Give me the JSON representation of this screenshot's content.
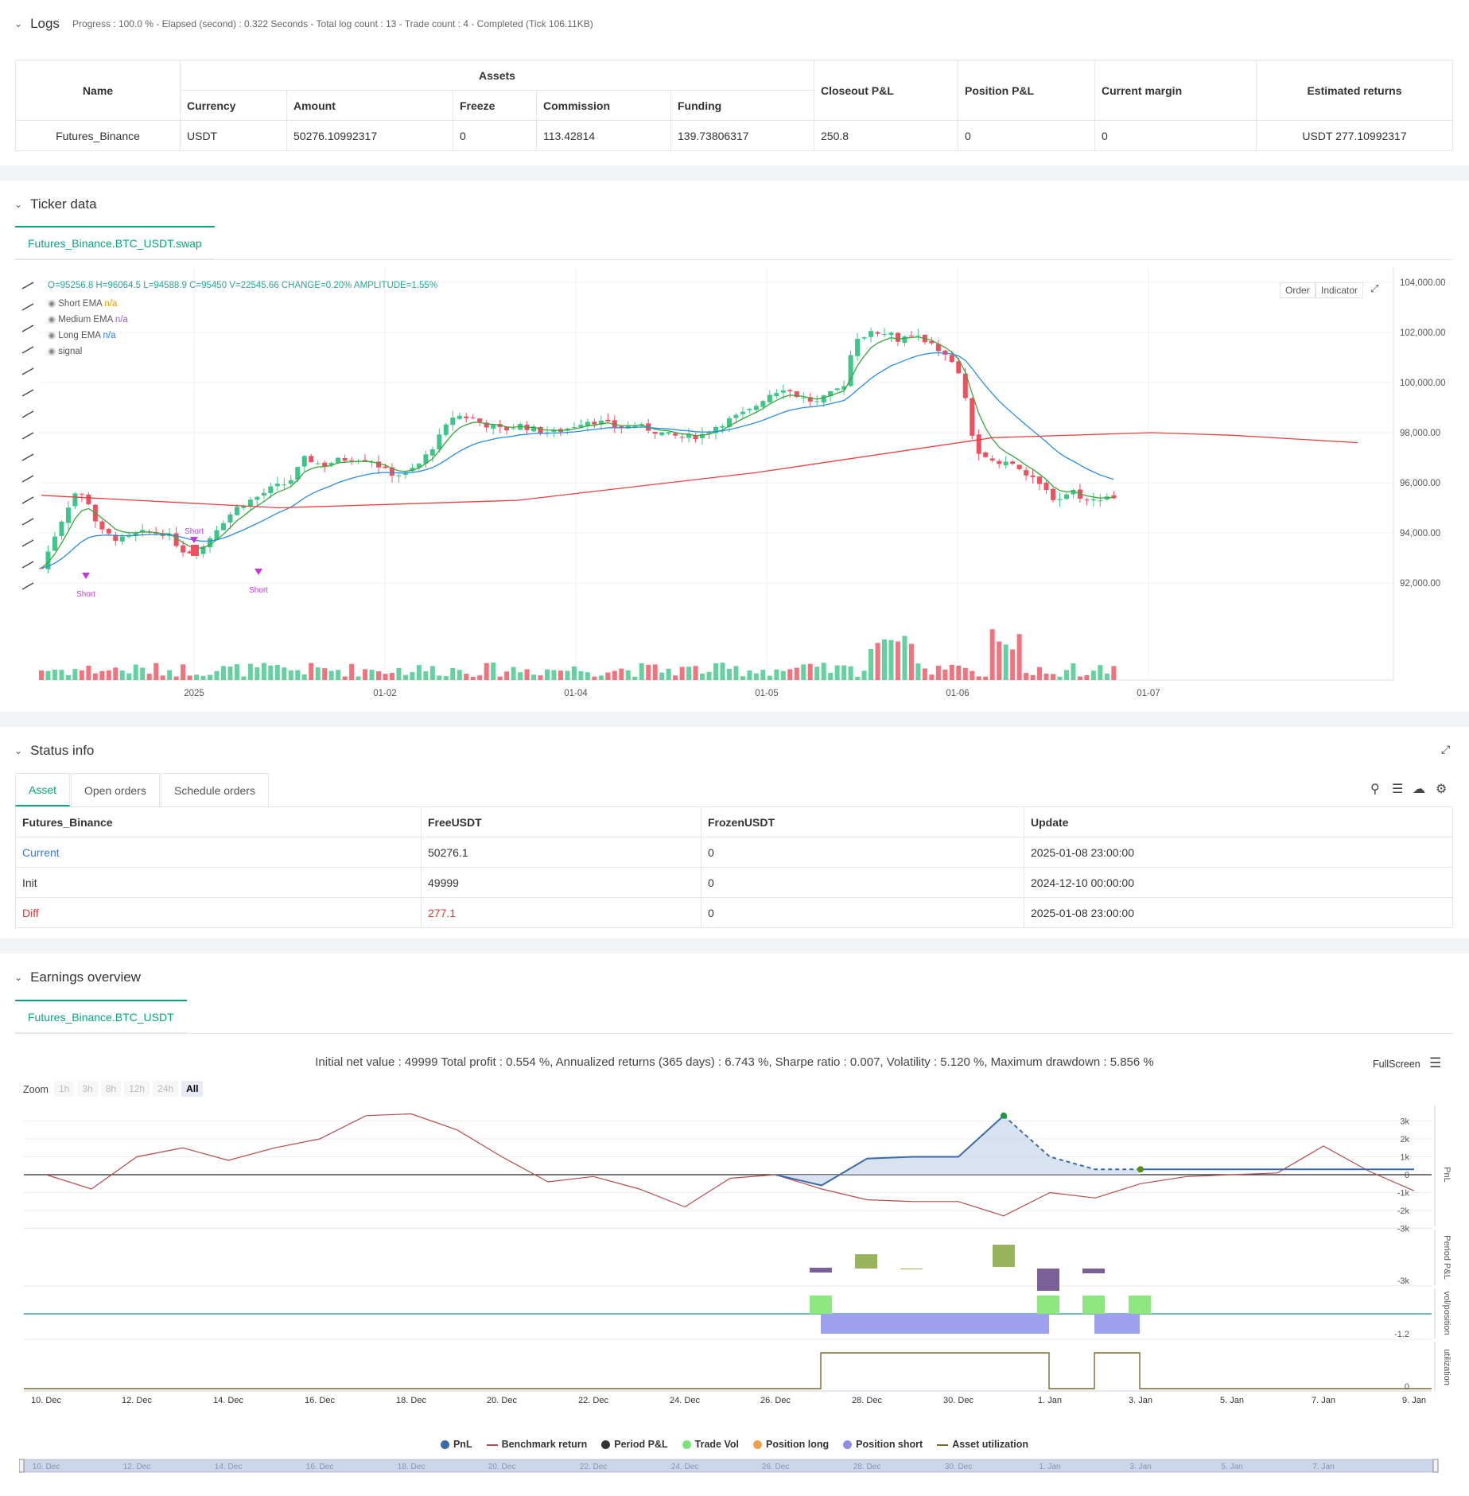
{
  "logs": {
    "title": "Logs",
    "progress": "Progress : 100.0 % - Elapsed (second) : 0.322  Seconds - Total log count : 13 - Trade count : 4 - Completed (Tick 106.11KB)",
    "headers": {
      "name": "Name",
      "assets": "Assets",
      "currency": "Currency",
      "amount": "Amount",
      "freeze": "Freeze",
      "commission": "Commission",
      "funding": "Funding",
      "closeout": "Closeout P&L",
      "position": "Position P&L",
      "margin": "Current margin",
      "returns": "Estimated returns"
    },
    "row": {
      "name": "Futures_Binance",
      "currency": "USDT",
      "amount": "50276.10992317",
      "freeze": "0",
      "commission": "113.42814",
      "funding": "139.73806317",
      "closeout": "250.8",
      "position": "0",
      "margin": "0",
      "returns": "USDT 277.10992317"
    }
  },
  "ticker": {
    "title": "Ticker data",
    "tab": "Futures_Binance.BTC_USDT.swap",
    "ohlc": "O=95256.8  H=96064.5  L=94588.9  C=95450  V=22545.66  CHANGE=0.20%  AMPLITUDE=1.55%",
    "legend": [
      {
        "name": "Short EMA",
        "value": "n/a",
        "color": "#e6a100"
      },
      {
        "name": "Medium EMA",
        "value": "n/a",
        "color": "#9b59b6"
      },
      {
        "name": "Long EMA",
        "value": "n/a",
        "color": "#2b7bd3"
      },
      {
        "name": "signal",
        "value": "",
        "color": "#333"
      }
    ],
    "buttons": {
      "order": "Order",
      "indicator": "Indicator"
    },
    "y_ticks": [
      "104,000.00",
      "102,000.00",
      "100,000.00",
      "98,000.00",
      "96,000.00",
      "94,000.00",
      "92,000.00"
    ],
    "x_ticks": [
      "2025",
      "01-02",
      "01-04",
      "01-05",
      "01-06",
      "01-07"
    ],
    "signals": [
      "Short",
      "Short",
      "Short"
    ]
  },
  "status": {
    "title": "Status info",
    "tabs": [
      "Asset",
      "Open orders",
      "Schedule orders"
    ],
    "headers": [
      "Futures_Binance",
      "FreeUSDT",
      "FrozenUSDT",
      "Update"
    ],
    "rows": [
      {
        "label": "Current",
        "free": "50276.1",
        "frozen": "0",
        "update": "2025-01-08 23:00:00"
      },
      {
        "label": "Init",
        "free": "49999",
        "frozen": "0",
        "update": "2024-12-10 00:00:00"
      },
      {
        "label": "Diff",
        "free": "277.1",
        "frozen": "0",
        "update": "2025-01-08 23:00:00"
      }
    ]
  },
  "earnings": {
    "title": "Earnings overview",
    "tab": "Futures_Binance.BTC_USDT",
    "summary": "Initial net value : 49999  Total profit : 0.554 %, Annualized returns (365 days) : 6.743 %, Sharpe ratio : 0.007, Volatility : 5.120 %, Maximum drawdown : 5.856 %",
    "fullscreen": "FullScreen",
    "zoom_label": "Zoom",
    "zoom_options": [
      "1h",
      "3h",
      "8h",
      "12h",
      "24h",
      "All"
    ],
    "pnl_ticks": [
      "3k",
      "2k",
      "1k",
      "0",
      "-1k",
      "-2k",
      "-3k"
    ],
    "axis_labels": {
      "pnl": "PnL",
      "period": "Period P&L",
      "vol": "vol/position",
      "util": "utilization"
    },
    "period_tick": "-3k",
    "vol_tick": "-1.2",
    "util_tick": "0",
    "x_ticks": [
      "10. Dec",
      "12. Dec",
      "14. Dec",
      "16. Dec",
      "18. Dec",
      "20. Dec",
      "22. Dec",
      "24. Dec",
      "26. Dec",
      "28. Dec",
      "30. Dec",
      "1. Jan",
      "3. Jan",
      "5. Jan",
      "7. Jan",
      "9. Jan"
    ],
    "legend": [
      {
        "name": "PnL",
        "color": "#3d6aa8"
      },
      {
        "name": "Benchmark return",
        "color": "#b54b4b"
      },
      {
        "name": "Period P&L",
        "color": "#333333"
      },
      {
        "name": "Trade Vol",
        "color": "#7fe07a"
      },
      {
        "name": "Position long",
        "color": "#f0a04b"
      },
      {
        "name": "Position short",
        "color": "#8c8ee8"
      },
      {
        "name": "Asset utilization",
        "color": "#7a6a2a"
      }
    ]
  }
}
